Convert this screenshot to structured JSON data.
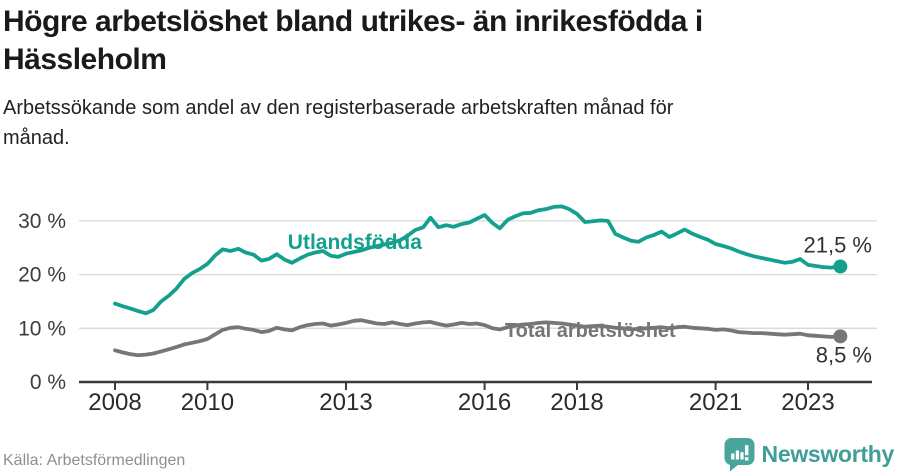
{
  "header": {
    "title_lines": [
      "Högre arbetslöshet bland utrikes- än inrikesfödda i",
      "Hässleholm"
    ],
    "subtitle_lines": [
      "Arbetssökande som andel av den registerbaserade arbetskraften månad för",
      "månad."
    ]
  },
  "footer": {
    "source": "Källa: Arbetsförmedlingen",
    "brand": "Newsworthy",
    "logo_icon": "newsworthy-speech-bubble-bar-chart-icon"
  },
  "colors": {
    "teal_line": "#14a08e",
    "gray_line": "#767676",
    "grid": "#d9d9d9",
    "axis": "#3a3a3a",
    "tick_text": "#2b2b2b",
    "value_label": "#333333",
    "logo": "#4aa49c"
  },
  "chart_data": {
    "type": "line",
    "title": "Högre arbetslöshet bland utrikes- än inrikesfödda i Hässleholm",
    "subtitle": "Arbetssökande som andel av den registerbaserade arbetskraften månad för månad.",
    "grid": "horizontal",
    "legend_position": "inline-labels",
    "x_axis": {
      "range": [
        2007.2,
        2024.5
      ],
      "ticks": [
        2008,
        2010,
        2013,
        2016,
        2018,
        2021,
        2023
      ],
      "tick_labels": [
        "2008",
        "2010",
        "2013",
        "2016",
        "2018",
        "2021",
        "2023"
      ]
    },
    "y_axis": {
      "range": [
        0,
        34.5
      ],
      "unit": "%",
      "ticks": [
        0,
        10,
        20,
        30
      ],
      "tick_labels": [
        "0 %",
        "10 %",
        "20 %",
        "30 %"
      ]
    },
    "series": [
      {
        "name": "Utlandsfödda",
        "color": "#14a08e",
        "end_value": 21.5,
        "end_label": "21,5 %",
        "end_label_pos": "above",
        "label_anchor": {
          "x": 2011.74,
          "y": 24.8
        },
        "label_font": 21,
        "points": [
          [
            2008.0,
            14.6
          ],
          [
            2008.17,
            14.1
          ],
          [
            2008.33,
            13.7
          ],
          [
            2008.5,
            13.2
          ],
          [
            2008.67,
            12.8
          ],
          [
            2008.83,
            13.4
          ],
          [
            2009.0,
            15.0
          ],
          [
            2009.17,
            16.1
          ],
          [
            2009.33,
            17.4
          ],
          [
            2009.5,
            19.2
          ],
          [
            2009.67,
            20.3
          ],
          [
            2009.83,
            21.0
          ],
          [
            2010.0,
            22.0
          ],
          [
            2010.17,
            23.6
          ],
          [
            2010.33,
            24.7
          ],
          [
            2010.5,
            24.4
          ],
          [
            2010.67,
            24.8
          ],
          [
            2010.83,
            24.1
          ],
          [
            2011.0,
            23.7
          ],
          [
            2011.17,
            22.6
          ],
          [
            2011.33,
            22.9
          ],
          [
            2011.5,
            23.8
          ],
          [
            2011.67,
            22.8
          ],
          [
            2011.83,
            22.2
          ],
          [
            2012.0,
            23.0
          ],
          [
            2012.17,
            23.7
          ],
          [
            2012.33,
            24.1
          ],
          [
            2012.5,
            24.4
          ],
          [
            2012.67,
            23.5
          ],
          [
            2012.83,
            23.3
          ],
          [
            2013.0,
            23.9
          ],
          [
            2013.17,
            24.2
          ],
          [
            2013.33,
            24.5
          ],
          [
            2013.5,
            25.0
          ],
          [
            2013.67,
            25.3
          ],
          [
            2013.83,
            25.6
          ],
          [
            2014.0,
            25.9
          ],
          [
            2014.17,
            26.4
          ],
          [
            2014.33,
            27.2
          ],
          [
            2014.5,
            28.3
          ],
          [
            2014.67,
            28.8
          ],
          [
            2014.83,
            30.6
          ],
          [
            2015.0,
            28.8
          ],
          [
            2015.17,
            29.2
          ],
          [
            2015.33,
            28.9
          ],
          [
            2015.5,
            29.4
          ],
          [
            2015.67,
            29.7
          ],
          [
            2015.83,
            30.4
          ],
          [
            2016.0,
            31.1
          ],
          [
            2016.17,
            29.6
          ],
          [
            2016.33,
            28.6
          ],
          [
            2016.5,
            30.2
          ],
          [
            2016.67,
            30.9
          ],
          [
            2016.83,
            31.4
          ],
          [
            2017.0,
            31.5
          ],
          [
            2017.17,
            32.0
          ],
          [
            2017.33,
            32.2
          ],
          [
            2017.5,
            32.6
          ],
          [
            2017.67,
            32.7
          ],
          [
            2017.83,
            32.2
          ],
          [
            2018.0,
            31.3
          ],
          [
            2018.17,
            29.8
          ],
          [
            2018.33,
            29.9
          ],
          [
            2018.5,
            30.1
          ],
          [
            2018.67,
            30.0
          ],
          [
            2018.83,
            27.6
          ],
          [
            2019.0,
            26.9
          ],
          [
            2019.17,
            26.3
          ],
          [
            2019.33,
            26.1
          ],
          [
            2019.5,
            26.9
          ],
          [
            2019.67,
            27.4
          ],
          [
            2019.83,
            28.0
          ],
          [
            2020.0,
            27.0
          ],
          [
            2020.17,
            27.7
          ],
          [
            2020.33,
            28.4
          ],
          [
            2020.5,
            27.6
          ],
          [
            2020.67,
            27.0
          ],
          [
            2020.83,
            26.5
          ],
          [
            2021.0,
            25.7
          ],
          [
            2021.17,
            25.3
          ],
          [
            2021.33,
            24.9
          ],
          [
            2021.5,
            24.3
          ],
          [
            2021.67,
            23.8
          ],
          [
            2021.83,
            23.4
          ],
          [
            2022.0,
            23.1
          ],
          [
            2022.17,
            22.8
          ],
          [
            2022.33,
            22.5
          ],
          [
            2022.5,
            22.2
          ],
          [
            2022.67,
            22.4
          ],
          [
            2022.83,
            22.9
          ],
          [
            2023.0,
            21.8
          ],
          [
            2023.17,
            21.6
          ],
          [
            2023.33,
            21.4
          ],
          [
            2023.5,
            21.3
          ],
          [
            2023.7,
            21.5
          ]
        ]
      },
      {
        "name": "Total arbetslöshet",
        "color": "#767676",
        "end_value": 8.5,
        "end_label": "8,5 %",
        "end_label_pos": "below",
        "label_anchor": {
          "x": 2016.44,
          "y": 8.4
        },
        "label_font": 20,
        "points": [
          [
            2008.0,
            5.9
          ],
          [
            2008.17,
            5.5
          ],
          [
            2008.33,
            5.2
          ],
          [
            2008.5,
            5.0
          ],
          [
            2008.67,
            5.1
          ],
          [
            2008.83,
            5.3
          ],
          [
            2009.0,
            5.7
          ],
          [
            2009.17,
            6.1
          ],
          [
            2009.33,
            6.5
          ],
          [
            2009.5,
            7.0
          ],
          [
            2009.67,
            7.3
          ],
          [
            2009.83,
            7.6
          ],
          [
            2010.0,
            8.0
          ],
          [
            2010.17,
            8.9
          ],
          [
            2010.33,
            9.7
          ],
          [
            2010.5,
            10.1
          ],
          [
            2010.67,
            10.2
          ],
          [
            2010.83,
            9.9
          ],
          [
            2011.0,
            9.7
          ],
          [
            2011.17,
            9.3
          ],
          [
            2011.33,
            9.5
          ],
          [
            2011.5,
            10.1
          ],
          [
            2011.67,
            9.8
          ],
          [
            2011.83,
            9.6
          ],
          [
            2012.0,
            10.2
          ],
          [
            2012.17,
            10.6
          ],
          [
            2012.33,
            10.8
          ],
          [
            2012.5,
            10.9
          ],
          [
            2012.67,
            10.5
          ],
          [
            2012.83,
            10.7
          ],
          [
            2013.0,
            11.0
          ],
          [
            2013.17,
            11.4
          ],
          [
            2013.33,
            11.5
          ],
          [
            2013.5,
            11.2
          ],
          [
            2013.67,
            10.9
          ],
          [
            2013.83,
            10.8
          ],
          [
            2014.0,
            11.1
          ],
          [
            2014.17,
            10.8
          ],
          [
            2014.33,
            10.6
          ],
          [
            2014.5,
            10.9
          ],
          [
            2014.67,
            11.1
          ],
          [
            2014.83,
            11.2
          ],
          [
            2015.0,
            10.8
          ],
          [
            2015.17,
            10.5
          ],
          [
            2015.33,
            10.7
          ],
          [
            2015.5,
            11.0
          ],
          [
            2015.67,
            10.8
          ],
          [
            2015.83,
            10.9
          ],
          [
            2016.0,
            10.6
          ],
          [
            2016.17,
            10.0
          ],
          [
            2016.33,
            9.8
          ],
          [
            2016.5,
            10.2
          ],
          [
            2016.67,
            10.5
          ],
          [
            2016.83,
            10.7
          ],
          [
            2017.0,
            10.8
          ],
          [
            2017.17,
            11.0
          ],
          [
            2017.33,
            11.1
          ],
          [
            2017.5,
            11.0
          ],
          [
            2017.67,
            10.9
          ],
          [
            2017.83,
            10.7
          ],
          [
            2018.0,
            10.5
          ],
          [
            2018.17,
            10.3
          ],
          [
            2018.33,
            10.4
          ],
          [
            2018.5,
            10.5
          ],
          [
            2018.67,
            10.3
          ],
          [
            2018.83,
            10.1
          ],
          [
            2019.0,
            10.0
          ],
          [
            2019.17,
            9.8
          ],
          [
            2019.33,
            9.9
          ],
          [
            2019.5,
            10.0
          ],
          [
            2019.67,
            10.1
          ],
          [
            2019.83,
            10.2
          ],
          [
            2020.0,
            10.0
          ],
          [
            2020.17,
            10.2
          ],
          [
            2020.33,
            10.3
          ],
          [
            2020.5,
            10.1
          ],
          [
            2020.67,
            10.0
          ],
          [
            2020.83,
            9.9
          ],
          [
            2021.0,
            9.7
          ],
          [
            2021.17,
            9.8
          ],
          [
            2021.33,
            9.6
          ],
          [
            2021.5,
            9.3
          ],
          [
            2021.67,
            9.2
          ],
          [
            2021.83,
            9.1
          ],
          [
            2022.0,
            9.1
          ],
          [
            2022.17,
            9.0
          ],
          [
            2022.33,
            8.9
          ],
          [
            2022.5,
            8.8
          ],
          [
            2022.67,
            8.9
          ],
          [
            2022.83,
            9.0
          ],
          [
            2023.0,
            8.7
          ],
          [
            2023.17,
            8.6
          ],
          [
            2023.33,
            8.5
          ],
          [
            2023.5,
            8.4
          ],
          [
            2023.7,
            8.5
          ]
        ]
      }
    ]
  }
}
